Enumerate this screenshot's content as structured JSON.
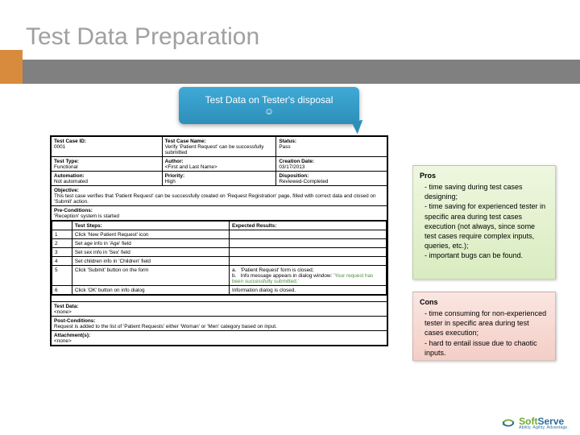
{
  "title": "Test Data Preparation",
  "bubble": {
    "line1": "Test Data on Tester's disposal",
    "emoji": "☺"
  },
  "testcase": {
    "id_label": "Test Case ID:",
    "id": "0001",
    "name_label": "Test Case Name:",
    "name": "Verify 'Patient Request' can be successfully submitted",
    "status_label": "Status:",
    "status": "Pass",
    "type_label": "Test Type:",
    "type": "Functional",
    "author_label": "Author:",
    "author": "<First and Last Name>",
    "date_label": "Creation Date:",
    "date": "03/17/2013",
    "auto_label": "Automation:",
    "auto": "Not automated",
    "prio_label": "Priority:",
    "prio": "High",
    "disp_label": "Disposition:",
    "disp": "Reviewed-Completed",
    "obj_label": "Objective:",
    "obj": "This test case verifies that 'Patient Request' can be successfully created on 'Request Registration' page, filled with correct data and closed on 'Submit' action.",
    "precond_label": "Pre-Conditions:",
    "precond": "'Reception' system is started",
    "steps_hdr": "Test Steps:",
    "expected_hdr": "Expected Results:",
    "steps": [
      {
        "n": "1",
        "s": "Click 'New Patient Request' icon",
        "e": ""
      },
      {
        "n": "2",
        "s": "Set age info in 'Age' field",
        "e": ""
      },
      {
        "n": "3",
        "s": "Set sex info in 'Sex' field",
        "e": ""
      },
      {
        "n": "4",
        "s": "Set children info in 'Children' field",
        "e": ""
      },
      {
        "n": "5",
        "s": "Click 'Submit' button on the form",
        "e": "a.   'Patient Request' form is closed;\nb.   Info message appears in dialog window: ",
        "eg": "'Your request has been successfully submitted.'"
      },
      {
        "n": "6",
        "s": "Click 'OK' button on info dialog",
        "e": "Information dialog is closed."
      }
    ],
    "testdata_label": "Test Data:",
    "testdata": "<none>",
    "postcond_label": "Post-Conditions:",
    "postcond": "Request is added to the list of 'Patient Requests' either 'Woman' or 'Men' category based on input.",
    "attach_label": "Attachment(s):",
    "attach": "<none>"
  },
  "pros": {
    "header": "Pros",
    "items": [
      "time saving during test cases designing;",
      "time saving for experienced tester in specific area during test cases execution (not always, since some test cases require complex inputs, queries, etc.);",
      "important bugs can be found."
    ]
  },
  "cons": {
    "header": "Cons",
    "items": [
      "time consuming for non-experienced tester in specific area during test cases execution;",
      "hard to entail issue due to chaotic inputs."
    ]
  },
  "logo": {
    "name_a": "Soft",
    "name_b": "Serve",
    "tag": "Ability. Agility. Advantage."
  },
  "colors": {
    "title": "#a0a0a0",
    "graybar": "#808080",
    "orange": "#d88b3c",
    "bubble_top": "#3fa9d6",
    "bubble_bot": "#2d8fb9",
    "pros_bg": "#d9ecc0",
    "cons_bg": "#f3cec6",
    "logo_green": "#6fa92e",
    "logo_blue": "#2a6fa0"
  }
}
